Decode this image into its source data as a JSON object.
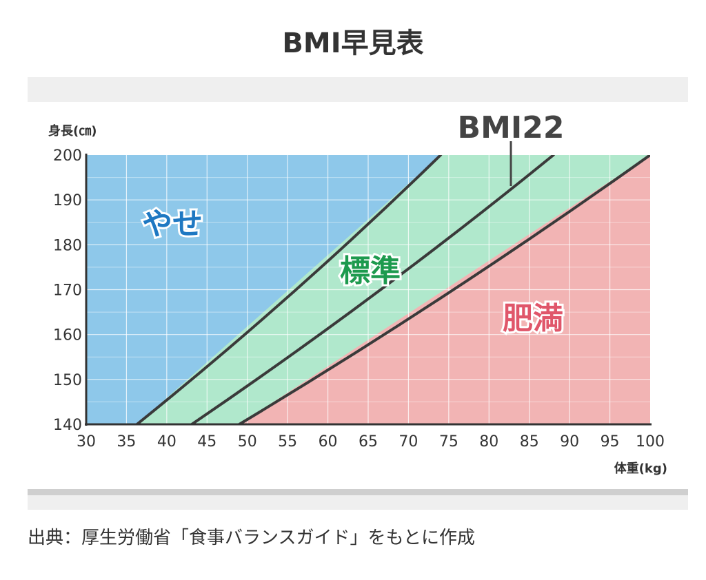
{
  "title": "BMI早見表",
  "source": "出典：厚生労働省「食事バランスガイド」をもとに作成",
  "chart_data": {
    "type": "area",
    "title": "BMI早見表",
    "xlabel": "体重(kg)",
    "ylabel": "身長(㎝)",
    "xlim": [
      30,
      100
    ],
    "ylim": [
      140,
      200
    ],
    "xticks": [
      30,
      35,
      40,
      45,
      50,
      55,
      60,
      65,
      70,
      75,
      80,
      85,
      90,
      95,
      100
    ],
    "yticks": [
      140,
      150,
      160,
      170,
      180,
      190,
      200
    ],
    "grid": true,
    "curves": [
      {
        "name": "",
        "bmi": 18.5,
        "x": [
          36.3,
          74.0
        ],
        "y": [
          140,
          200
        ]
      },
      {
        "name": "BMI22",
        "bmi": 22,
        "x": [
          43.1,
          88.0
        ],
        "y": [
          140,
          200
        ]
      },
      {
        "name": "",
        "bmi": 25,
        "x": [
          49.0,
          100.0
        ],
        "y": [
          140,
          200
        ]
      }
    ],
    "regions": [
      {
        "label": "やせ",
        "color": "#8ec8ea",
        "label_color": "#1e78c2"
      },
      {
        "label": "標準",
        "color": "#b0e8cc",
        "label_color": "#1d9a4e"
      },
      {
        "label": "肥満",
        "color": "#f2b4b4",
        "label_color": "#e0566a"
      }
    ],
    "annotation": "BMI22"
  }
}
